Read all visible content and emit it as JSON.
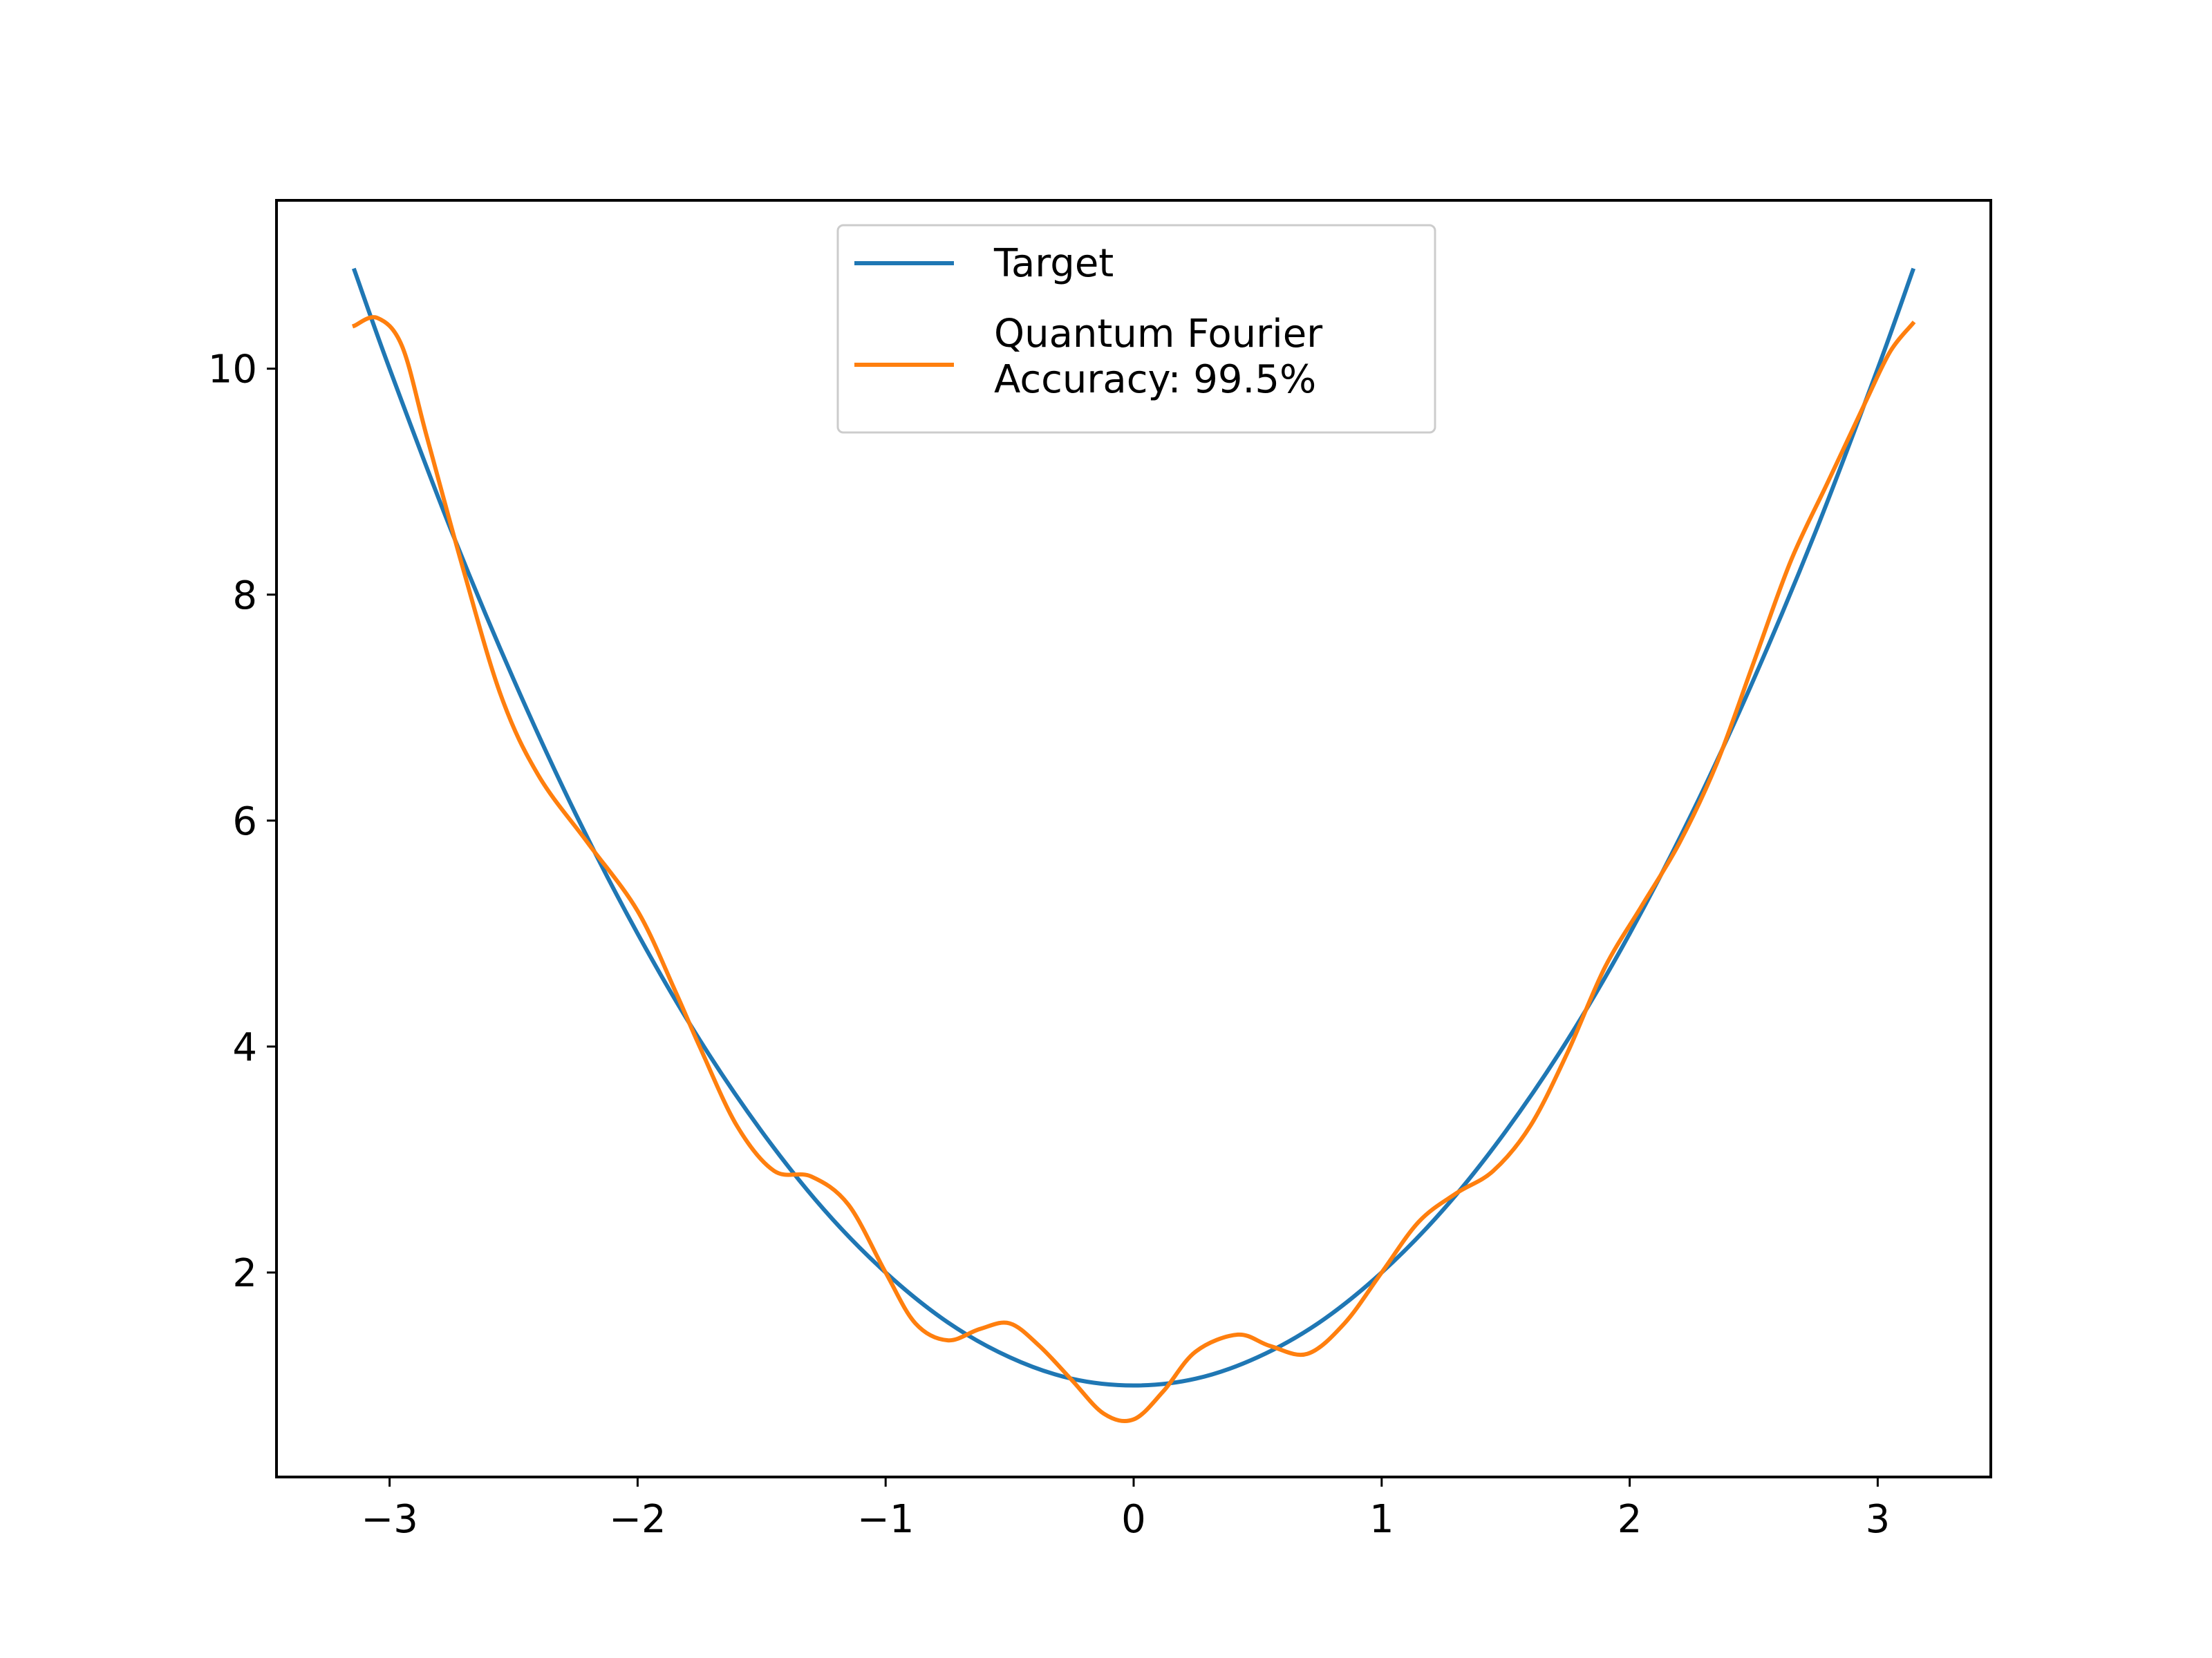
{
  "chart_data": {
    "type": "line",
    "title": "",
    "xlabel": "",
    "ylabel": "",
    "xlim": [
      -3.456,
      3.456
    ],
    "ylim": [
      0.19,
      11.49
    ],
    "x_ticks": [
      -3,
      -2,
      -1,
      0,
      1,
      2,
      3
    ],
    "x_tick_labels": [
      "−3",
      "−2",
      "−1",
      "0",
      "1",
      "2",
      "3"
    ],
    "y_ticks": [
      2,
      4,
      6,
      8,
      10
    ],
    "y_tick_labels": [
      "2",
      "4",
      "6",
      "8",
      "10"
    ],
    "grid": false,
    "legend": {
      "placement": "upper center",
      "entries": [
        {
          "series": 0,
          "lines": [
            "Target"
          ]
        },
        {
          "series": 1,
          "lines": [
            "Quantum Fourier",
            "Accuracy: 99.5%"
          ]
        }
      ]
    },
    "series": [
      {
        "name": "Target",
        "color": "#1f77b4",
        "x": [
          -3.1416,
          -3.0,
          -2.75,
          -2.5,
          -2.25,
          -2.0,
          -1.75,
          -1.5,
          -1.25,
          -1.0,
          -0.75,
          -0.5,
          -0.25,
          0.0,
          0.25,
          0.5,
          0.75,
          1.0,
          1.25,
          1.5,
          1.75,
          2.0,
          2.25,
          2.5,
          2.75,
          3.0,
          3.1416
        ],
        "y": [
          10.87,
          10.0,
          8.56,
          7.25,
          6.06,
          5.0,
          4.06,
          3.25,
          2.56,
          2.0,
          1.56,
          1.25,
          1.06,
          1.0,
          1.06,
          1.25,
          1.56,
          2.0,
          2.56,
          3.25,
          4.06,
          5.0,
          6.06,
          7.25,
          8.56,
          10.0,
          10.87
        ]
      },
      {
        "name": "Quantum Fourier",
        "color": "#ff7f0e",
        "x": [
          -3.1416,
          -3.05,
          -2.95,
          -2.85,
          -2.7,
          -2.55,
          -2.4,
          -2.2,
          -2.0,
          -1.85,
          -1.75,
          -1.6,
          -1.45,
          -1.3,
          -1.15,
          -1.0,
          -0.88,
          -0.75,
          -0.62,
          -0.5,
          -0.38,
          -0.25,
          -0.12,
          0.0,
          0.12,
          0.25,
          0.42,
          0.55,
          0.7,
          0.85,
          1.0,
          1.15,
          1.3,
          1.45,
          1.6,
          1.75,
          1.9,
          2.05,
          2.2,
          2.35,
          2.5,
          2.65,
          2.8,
          2.95,
          3.05,
          3.1416
        ],
        "y": [
          10.38,
          10.45,
          10.2,
          9.4,
          8.2,
          7.1,
          6.4,
          5.8,
          5.2,
          4.5,
          4.0,
          3.3,
          2.9,
          2.85,
          2.6,
          2.0,
          1.55,
          1.4,
          1.5,
          1.55,
          1.35,
          1.05,
          0.75,
          0.7,
          0.95,
          1.3,
          1.45,
          1.35,
          1.28,
          1.55,
          2.0,
          2.45,
          2.7,
          2.9,
          3.3,
          3.95,
          4.7,
          5.25,
          5.8,
          6.5,
          7.4,
          8.3,
          9.0,
          9.7,
          10.15,
          10.4
        ]
      }
    ]
  }
}
